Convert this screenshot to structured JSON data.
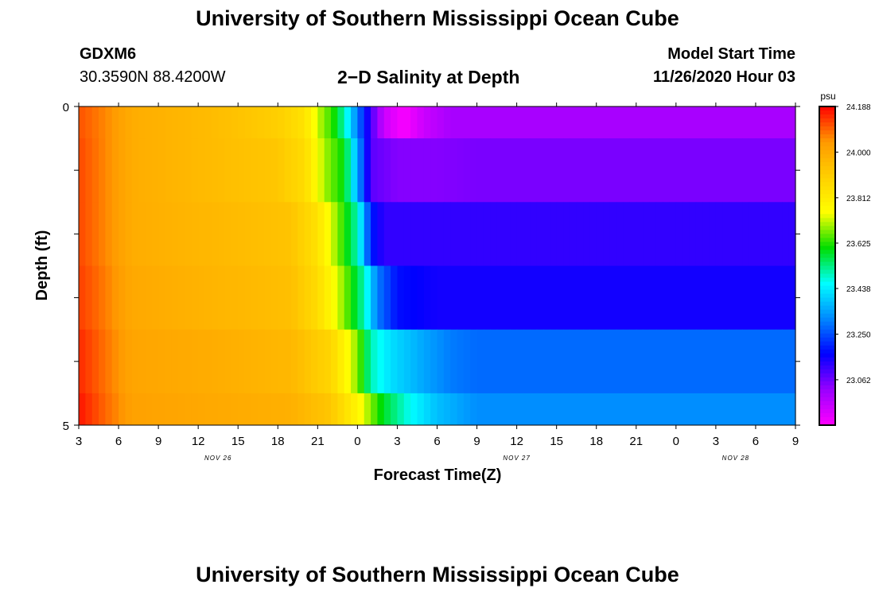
{
  "header": {
    "title": "University of Southern Mississippi Ocean Cube",
    "station_id": "GDXM6",
    "coordinates": "30.3590N 88.4200W",
    "subtitle": "2−D Salinity at Depth",
    "model_start_label": "Model Start Time",
    "model_start_value": "11/26/2020 Hour 03"
  },
  "footer": {
    "title": "University of Southern Mississippi Ocean Cube"
  },
  "chart_data": {
    "type": "heatmap",
    "xlabel": "Forecast Time(Z)",
    "ylabel": "Depth (ft)",
    "y_ticks": [
      "0",
      "5"
    ],
    "ylim": [
      0,
      5
    ],
    "x_tick_labels": [
      "3",
      "6",
      "9",
      "12",
      "15",
      "18",
      "21",
      "0",
      "3",
      "6",
      "9",
      "12",
      "15",
      "18",
      "21",
      "0",
      "3",
      "6",
      "9"
    ],
    "date_labels": [
      {
        "text": "NOV 26",
        "at_tick": 3.5
      },
      {
        "text": "NOV 27",
        "at_tick": 11
      },
      {
        "text": "NOV 28",
        "at_tick": 16.5
      }
    ],
    "colorbar": {
      "unit": "psu",
      "tick_labels": [
        "24.188",
        "24.000",
        "23.812",
        "23.625",
        "23.438",
        "23.250",
        "23.062"
      ],
      "vmin": 22.875,
      "vmax": 24.188,
      "colors": [
        "#ff00ff",
        "#9900ff",
        "#0000ff",
        "#0088ff",
        "#00ffff",
        "#00dd00",
        "#ffff00",
        "#ffd000",
        "#ff9900",
        "#ff0000"
      ]
    },
    "layers": [
      {
        "depth_range": [
          0,
          0.5
        ],
        "time_points": [
          [
            0,
            24.11
          ],
          [
            2,
            24.06
          ],
          [
            4,
            23.99
          ],
          [
            10,
            23.95
          ],
          [
            15,
            23.9
          ],
          [
            17,
            23.84
          ],
          [
            18,
            23.72
          ],
          [
            19.2,
            23.62
          ],
          [
            20,
            23.5
          ],
          [
            21,
            23.3
          ],
          [
            22,
            23.1
          ],
          [
            23,
            22.95
          ],
          [
            24.5,
            22.88
          ],
          [
            26,
            22.95
          ],
          [
            28,
            23.0
          ],
          [
            30,
            23.0
          ]
        ]
      },
      {
        "depth_range": [
          0.5,
          1.5
        ],
        "time_points": [
          [
            0,
            24.12
          ],
          [
            2,
            24.06
          ],
          [
            4,
            23.99
          ],
          [
            10,
            23.95
          ],
          [
            15,
            23.92
          ],
          [
            17,
            23.86
          ],
          [
            18.5,
            23.7
          ],
          [
            20,
            23.6
          ],
          [
            21.2,
            23.3
          ],
          [
            22,
            23.08
          ],
          [
            24,
            23.04
          ],
          [
            27,
            23.04
          ],
          [
            30,
            23.05
          ]
        ]
      },
      {
        "depth_range": [
          1.5,
          2.5
        ],
        "time_points": [
          [
            0,
            24.12
          ],
          [
            2,
            24.06
          ],
          [
            4,
            23.99
          ],
          [
            10,
            23.96
          ],
          [
            16,
            23.93
          ],
          [
            18,
            23.84
          ],
          [
            19.5,
            23.68
          ],
          [
            21,
            23.5
          ],
          [
            22,
            23.2
          ],
          [
            23,
            23.12
          ],
          [
            25,
            23.12
          ],
          [
            30,
            23.12
          ]
        ]
      },
      {
        "depth_range": [
          2.5,
          3.5
        ],
        "time_points": [
          [
            0,
            24.13
          ],
          [
            2,
            24.07
          ],
          [
            4,
            24.0
          ],
          [
            10,
            23.97
          ],
          [
            16,
            23.94
          ],
          [
            18,
            23.86
          ],
          [
            20,
            23.68
          ],
          [
            21.5,
            23.5
          ],
          [
            22.5,
            23.3
          ],
          [
            24,
            23.18
          ],
          [
            27,
            23.15
          ],
          [
            30,
            23.15
          ]
        ]
      },
      {
        "depth_range": [
          3.5,
          4.5
        ],
        "time_points": [
          [
            0,
            24.15
          ],
          [
            2,
            24.08
          ],
          [
            4,
            24.01
          ],
          [
            10,
            23.99
          ],
          [
            16,
            23.96
          ],
          [
            19,
            23.88
          ],
          [
            21,
            23.68
          ],
          [
            22,
            23.5
          ],
          [
            23.5,
            23.42
          ],
          [
            26,
            23.35
          ],
          [
            28,
            23.3
          ],
          [
            30,
            23.28
          ]
        ]
      },
      {
        "depth_range": [
          4.5,
          5
        ],
        "time_points": [
          [
            0,
            24.17
          ],
          [
            2,
            24.09
          ],
          [
            4,
            24.02
          ],
          [
            10,
            24.0
          ],
          [
            16,
            23.98
          ],
          [
            19,
            23.92
          ],
          [
            21,
            23.78
          ],
          [
            23,
            23.58
          ],
          [
            25,
            23.46
          ],
          [
            27,
            23.38
          ],
          [
            30,
            23.32
          ]
        ]
      }
    ]
  }
}
